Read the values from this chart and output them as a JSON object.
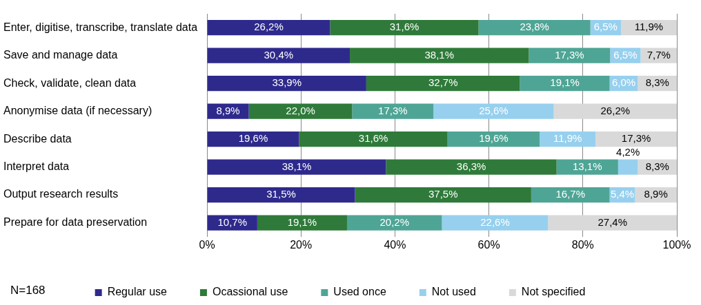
{
  "chart_data": {
    "type": "bar",
    "orientation": "horizontal",
    "stacked": true,
    "categories": [
      "Enter, digitise, transcribe, translate data",
      "Save and manage data",
      "Check, validate, clean data",
      "Anonymise data (if necessary)",
      "Describe data",
      "Interpret data",
      "Output research results",
      "Prepare for data preservation"
    ],
    "series": [
      {
        "name": "Regular use",
        "color": "#2e2a8c",
        "values": [
          26.2,
          30.4,
          33.9,
          8.9,
          19.6,
          38.1,
          31.5,
          10.7
        ],
        "value_labels": [
          "26,2%",
          "30,4%",
          "33,9%",
          "8,9%",
          "19,6%",
          "38,1%",
          "31,5%",
          "10,7%"
        ]
      },
      {
        "name": "Ocassional use",
        "color": "#2f7a3a",
        "values": [
          31.6,
          38.1,
          32.7,
          22.0,
          31.6,
          36.3,
          37.5,
          19.1
        ],
        "value_labels": [
          "31,6%",
          "38,1%",
          "32,7%",
          "22,0%",
          "31,6%",
          "36,3%",
          "37,5%",
          "19,1%"
        ]
      },
      {
        "name": "Used once",
        "color": "#4fa595",
        "values": [
          23.8,
          17.3,
          19.1,
          17.3,
          19.6,
          13.1,
          16.7,
          20.2
        ],
        "value_labels": [
          "23,8%",
          "17,3%",
          "19,1%",
          "17,3%",
          "19,6%",
          "13,1%",
          "16,7%",
          "20,2%"
        ]
      },
      {
        "name": "Not used",
        "color": "#97d0ee",
        "values": [
          6.5,
          6.5,
          6.0,
          25.6,
          11.9,
          4.2,
          5.4,
          22.6
        ],
        "value_labels": [
          "6,5%",
          "6,5%",
          "6,0%",
          "25,6%",
          "11,9%",
          "4,2%",
          "5,4%",
          "22,6%"
        ]
      },
      {
        "name": "Not specified",
        "color": "#d9d9d9",
        "values": [
          11.9,
          7.7,
          8.3,
          26.2,
          17.3,
          8.3,
          8.9,
          27.4
        ],
        "value_labels": [
          "11,9%",
          "7,7%",
          "8,3%",
          "26,2%",
          "17,3%",
          "8,3%",
          "8,9%",
          "27,4%"
        ]
      }
    ],
    "xlim": [
      0,
      100
    ],
    "xticks": [
      {
        "value": 0,
        "label": "0%"
      },
      {
        "value": 20,
        "label": "20%"
      },
      {
        "value": 40,
        "label": "40%"
      },
      {
        "value": 60,
        "label": "60%"
      },
      {
        "value": 80,
        "label": "80%"
      },
      {
        "value": 100,
        "label": "100%"
      }
    ],
    "grid": "x",
    "legend": "bottom",
    "annotations": [
      "N=168"
    ]
  }
}
